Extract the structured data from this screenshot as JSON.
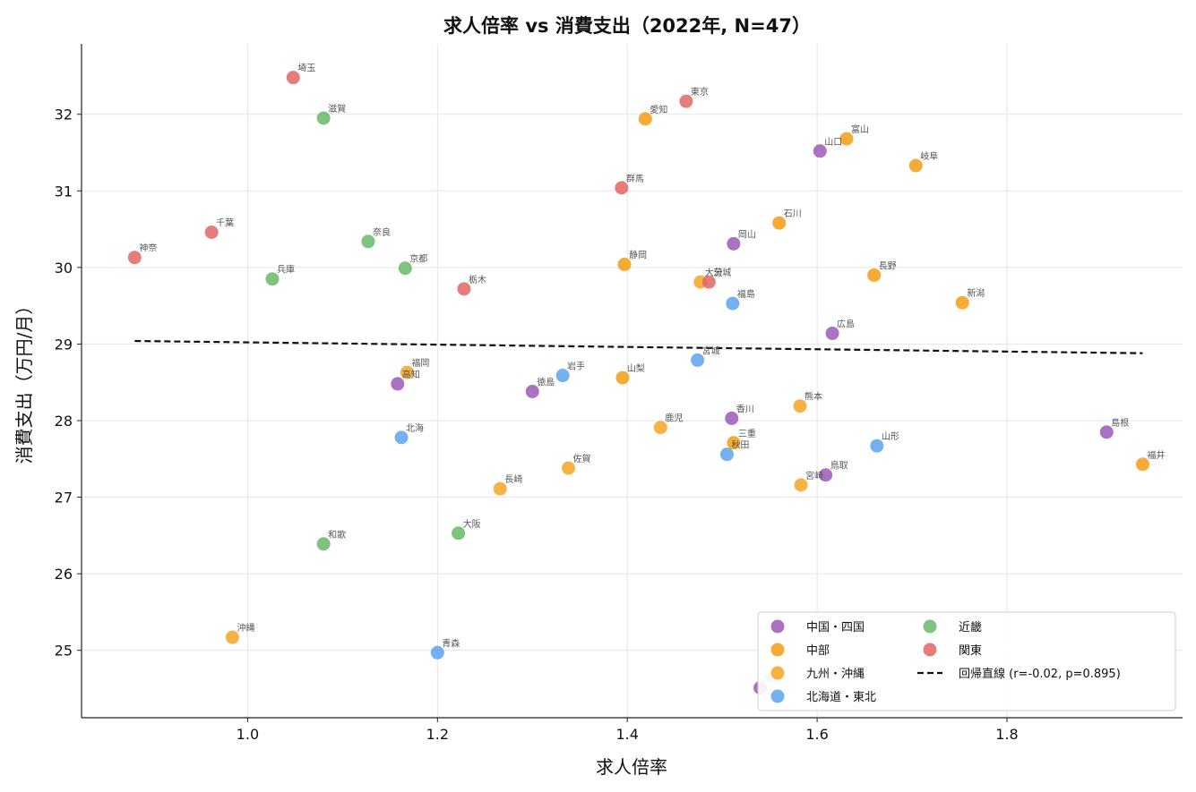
{
  "chart_data": {
    "type": "scatter",
    "title": "求人倍率 vs 消費支出（2022年, N=47）",
    "xlabel": "求人倍率",
    "ylabel": "消費支出（万円/月）",
    "xlim": [
      0.825,
      1.985
    ],
    "ylim": [
      24.12,
      32.92
    ],
    "xticks": [
      {
        "value": 1.0,
        "label": "1.0"
      },
      {
        "value": 1.2,
        "label": "1.2"
      },
      {
        "value": 1.4,
        "label": "1.4"
      },
      {
        "value": 1.6,
        "label": "1.6"
      },
      {
        "value": 1.8,
        "label": "1.8"
      }
    ],
    "yticks": [
      {
        "value": 25,
        "label": "25"
      },
      {
        "value": 26,
        "label": "26"
      },
      {
        "value": 27,
        "label": "27"
      },
      {
        "value": 28,
        "label": "28"
      },
      {
        "value": 29,
        "label": "29"
      },
      {
        "value": 30,
        "label": "30"
      },
      {
        "value": 31,
        "label": "31"
      },
      {
        "value": 32,
        "label": "32"
      }
    ],
    "grid": true,
    "legend_position": "bottom-right",
    "series": [
      {
        "name": "中国・四国",
        "color": "#9b59b6",
        "points": [
          {
            "label": "山口",
            "x": 1.603,
            "y": 31.52
          },
          {
            "label": "岡山",
            "x": 1.512,
            "y": 30.31
          },
          {
            "label": "広島",
            "x": 1.616,
            "y": 29.14
          },
          {
            "label": "高知",
            "x": 1.158,
            "y": 28.48
          },
          {
            "label": "徳島",
            "x": 1.3,
            "y": 28.38
          },
          {
            "label": "香川",
            "x": 1.51,
            "y": 28.03
          },
          {
            "label": "島根",
            "x": 1.905,
            "y": 27.85
          },
          {
            "label": "鳥取",
            "x": 1.609,
            "y": 27.29
          },
          {
            "label": "愛媛",
            "x": 1.54,
            "y": 24.51
          }
        ]
      },
      {
        "name": "中部",
        "color": "#f39c12",
        "points": [
          {
            "label": "愛知",
            "x": 1.419,
            "y": 31.94
          },
          {
            "label": "富山",
            "x": 1.631,
            "y": 31.68
          },
          {
            "label": "岐阜",
            "x": 1.704,
            "y": 31.33
          },
          {
            "label": "石川",
            "x": 1.56,
            "y": 30.58
          },
          {
            "label": "静岡",
            "x": 1.397,
            "y": 30.04
          },
          {
            "label": "長野",
            "x": 1.66,
            "y": 29.9
          },
          {
            "label": "新潟",
            "x": 1.753,
            "y": 29.54
          },
          {
            "label": "山梨",
            "x": 1.395,
            "y": 28.56
          },
          {
            "label": "三重",
            "x": 1.512,
            "y": 27.71
          },
          {
            "label": "福井",
            "x": 1.943,
            "y": 27.43
          }
        ]
      },
      {
        "name": "九州・沖縄",
        "color": "#f5a623",
        "points": [
          {
            "label": "大分",
            "x": 1.477,
            "y": 29.81
          },
          {
            "label": "福岡",
            "x": 1.168,
            "y": 28.63
          },
          {
            "label": "熊本",
            "x": 1.582,
            "y": 28.19
          },
          {
            "label": "鹿児",
            "x": 1.435,
            "y": 27.91
          },
          {
            "label": "佐賀",
            "x": 1.338,
            "y": 27.38
          },
          {
            "label": "宮崎",
            "x": 1.583,
            "y": 27.16
          },
          {
            "label": "長崎",
            "x": 1.266,
            "y": 27.11
          },
          {
            "label": "沖縄",
            "x": 0.984,
            "y": 25.17
          }
        ]
      },
      {
        "name": "北海道・東北",
        "color": "#5da2ef",
        "points": [
          {
            "label": "福島",
            "x": 1.511,
            "y": 29.53
          },
          {
            "label": "宮城",
            "x": 1.474,
            "y": 28.79
          },
          {
            "label": "岩手",
            "x": 1.332,
            "y": 28.59
          },
          {
            "label": "北海",
            "x": 1.162,
            "y": 27.78
          },
          {
            "label": "山形",
            "x": 1.663,
            "y": 27.67
          },
          {
            "label": "秋田",
            "x": 1.505,
            "y": 27.56
          },
          {
            "label": "青森",
            "x": 1.2,
            "y": 24.97
          }
        ]
      },
      {
        "name": "近畿",
        "color": "#6ab96a",
        "points": [
          {
            "label": "滋賀",
            "x": 1.08,
            "y": 31.95
          },
          {
            "label": "奈良",
            "x": 1.127,
            "y": 30.34
          },
          {
            "label": "京都",
            "x": 1.166,
            "y": 29.99
          },
          {
            "label": "兵庫",
            "x": 1.026,
            "y": 29.85
          },
          {
            "label": "大阪",
            "x": 1.222,
            "y": 26.53
          },
          {
            "label": "和歌",
            "x": 1.08,
            "y": 26.39
          }
        ]
      },
      {
        "name": "関東",
        "color": "#e06666",
        "points": [
          {
            "label": "埼玉",
            "x": 1.048,
            "y": 32.48
          },
          {
            "label": "東京",
            "x": 1.462,
            "y": 32.17
          },
          {
            "label": "群馬",
            "x": 1.394,
            "y": 31.04
          },
          {
            "label": "千葉",
            "x": 0.962,
            "y": 30.46
          },
          {
            "label": "神奈",
            "x": 0.881,
            "y": 30.13
          },
          {
            "label": "茨城",
            "x": 1.486,
            "y": 29.81
          },
          {
            "label": "栃木",
            "x": 1.228,
            "y": 29.72
          }
        ]
      }
    ],
    "regression": {
      "name": "回帰直線 (r=-0.02, p=0.895)",
      "x": [
        0.881,
        1.943
      ],
      "y": [
        29.04,
        28.88
      ]
    },
    "legend_order": [
      "中国・四国",
      "中部",
      "九州・沖縄",
      "北海道・東北",
      "近畿",
      "関東",
      "回帰直線 (r=-0.02, p=0.895)"
    ]
  }
}
